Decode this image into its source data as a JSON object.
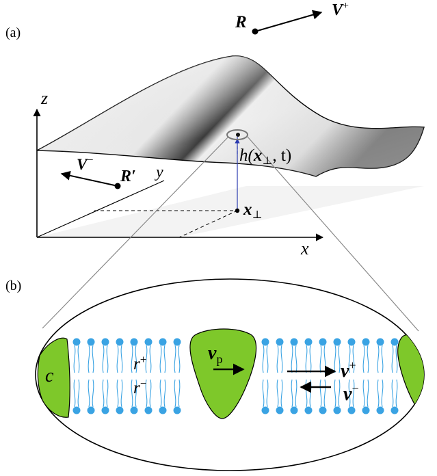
{
  "panel_a": {
    "tag": "(a)",
    "axis_z": "z",
    "axis_y": "y",
    "axis_x": "x",
    "height_label_main": "h(",
    "height_label_x": "x",
    "height_label_perp": "⊥",
    "height_label_tail": ", t)",
    "point_x": "x",
    "point_x_sub": "⊥",
    "particle_R": "R",
    "vel_V_plus": "V",
    "vel_V_plus_sup": "+",
    "particle_R_prime": "R′",
    "vel_V_minus": "V",
    "vel_V_minus_sup": "−"
  },
  "panel_b": {
    "tag": "(b)",
    "inclusion_c": "c",
    "r_plus": "r",
    "r_plus_sup": "+",
    "r_minus": "r",
    "r_minus_sup": "−",
    "v_p": "v",
    "v_p_sub": "p",
    "v_plus": "v",
    "v_plus_sup": "+",
    "v_minus": "v",
    "v_minus_sup": "−"
  },
  "colors": {
    "inclusion_green": "#7ec82a",
    "lipid_blue": "#3aa3e3",
    "height_arrow": "#2b3bb0"
  }
}
